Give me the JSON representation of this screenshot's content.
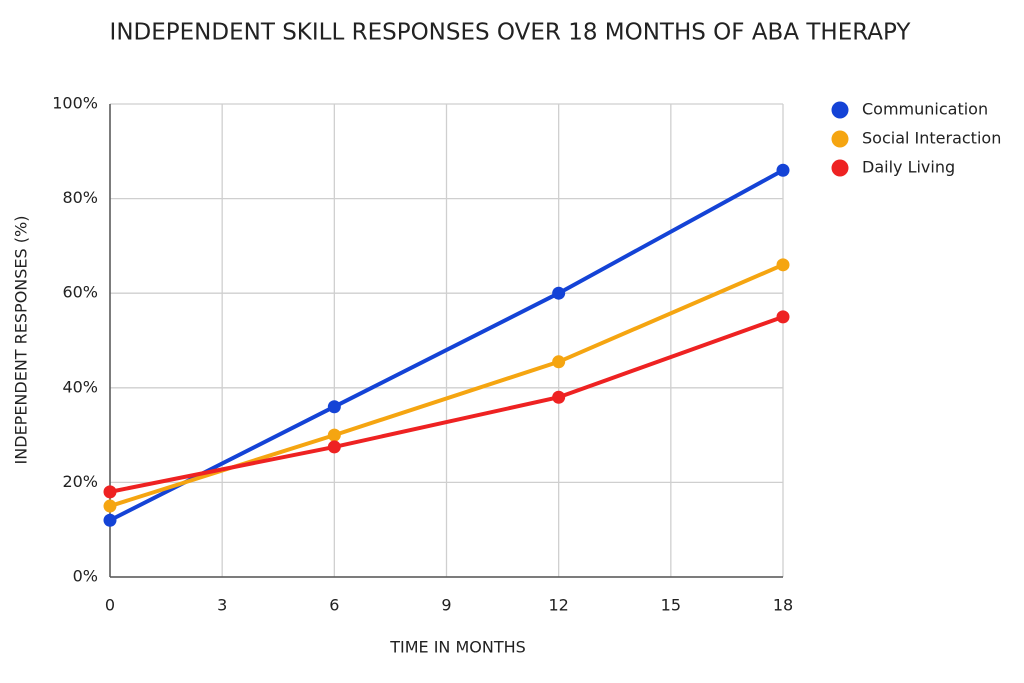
{
  "chart_data": {
    "type": "line",
    "title": "INDEPENDENT SKILL RESPONSES OVER 18 MONTHS OF ABA THERAPY",
    "x_label": "TIME IN MONTHS",
    "y_label": "INDEPENDENT RESPONSES (%)",
    "x": [
      0,
      6,
      12,
      18
    ],
    "series": [
      {
        "name": "Communication",
        "color": "#1443d6",
        "values": [
          12,
          36,
          60,
          86
        ]
      },
      {
        "name": "Social Interaction",
        "color": "#f5a511",
        "values": [
          15,
          30,
          45.5,
          66
        ]
      },
      {
        "name": "Daily Living",
        "color": "#ee2222",
        "values": [
          18,
          27.5,
          38,
          55
        ]
      }
    ],
    "xlim": [
      0,
      18
    ],
    "xticks": [
      0,
      3,
      6,
      9,
      12,
      15,
      18
    ],
    "ylim": [
      0,
      100
    ],
    "yticks": [
      {
        "value": 0,
        "label": "0%"
      },
      {
        "value": 20,
        "label": "20%"
      },
      {
        "value": 40,
        "label": "40%"
      },
      {
        "value": 60,
        "label": "60%"
      },
      {
        "value": 80,
        "label": "80%"
      },
      {
        "value": 100,
        "label": "100%"
      }
    ],
    "grid": true,
    "legend": "right"
  }
}
